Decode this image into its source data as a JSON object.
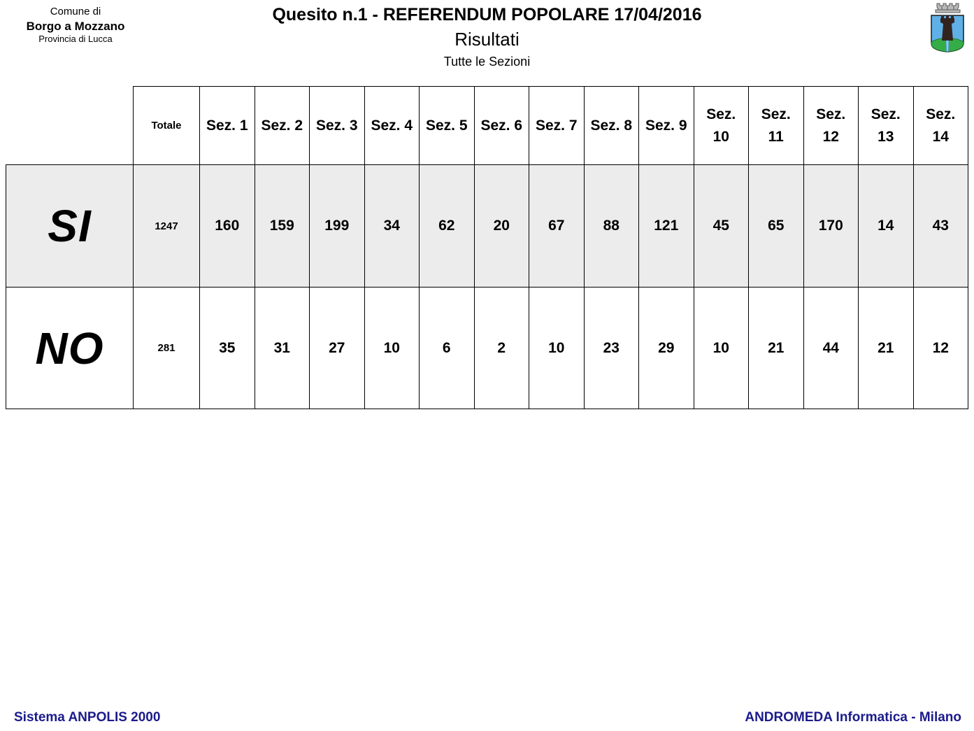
{
  "header": {
    "comune_line1": "Comune di",
    "comune_line2": "Borgo a Mozzano",
    "comune_line3": "Provincia di Lucca",
    "title": "Quesito n.1 - REFERENDUM POPOLARE 17/04/2016",
    "subtitle": "Risultati",
    "scope": "Tutte le Sezioni",
    "crest_icon": "borgo-a-mozzano-coat-of-arms"
  },
  "table": {
    "columns": [
      "Totale",
      "Sez. 1",
      "Sez. 2",
      "Sez. 3",
      "Sez. 4",
      "Sez. 5",
      "Sez. 6",
      "Sez. 7",
      "Sez. 8",
      "Sez. 9",
      "Sez.\n10",
      "Sez.\n11",
      "Sez.\n12",
      "Sez.\n13",
      "Sez.\n14"
    ],
    "rows": [
      {
        "label": "SI",
        "values": [
          "1247",
          "160",
          "159",
          "199",
          "34",
          "62",
          "20",
          "67",
          "88",
          "121",
          "45",
          "65",
          "170",
          "14",
          "43"
        ]
      },
      {
        "label": "NO",
        "values": [
          "281",
          "35",
          "31",
          "27",
          "10",
          "6",
          "2",
          "10",
          "23",
          "29",
          "10",
          "21",
          "44",
          "21",
          "12"
        ]
      }
    ]
  },
  "footer": {
    "left": "Sistema ANPOLIS 2000",
    "right": "ANDROMEDA Informatica - Milano"
  },
  "colors": {
    "si_row_bg": "#ececec",
    "footer_text": "#1b1b8c",
    "crest_blue": "#5fb0e6",
    "crest_green": "#35ad47",
    "crest_crown": "#b9b9b9",
    "crest_tower": "#33231f"
  }
}
